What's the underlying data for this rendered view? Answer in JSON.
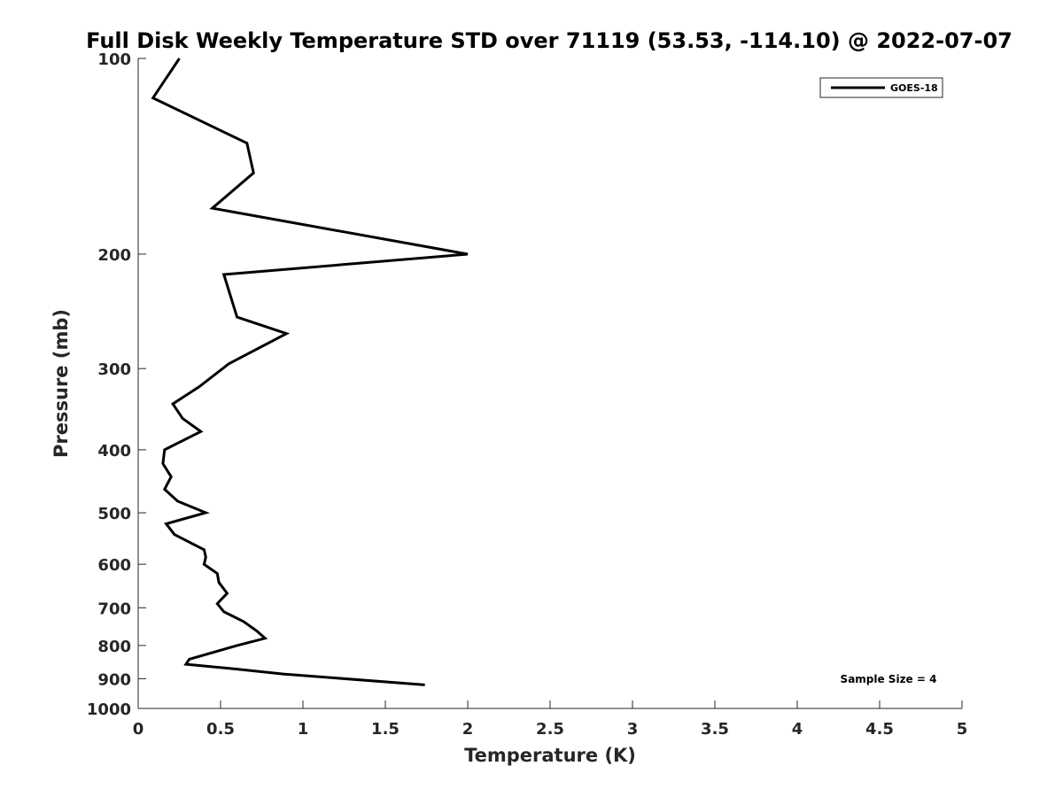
{
  "chart_data": {
    "type": "line",
    "title": "Full Disk Weekly Temperature STD over 71119 (53.53, -114.10) @ 2022-07-07",
    "xlabel": "Temperature (K)",
    "ylabel": "Pressure (mb)",
    "xlim": [
      0,
      5
    ],
    "ylim": [
      100,
      1000
    ],
    "y_scale": "log",
    "y_reversed": true,
    "x_ticks": [
      "0",
      "0.5",
      "1",
      "1.5",
      "2",
      "2.5",
      "3",
      "3.5",
      "4",
      "4.5",
      "5"
    ],
    "x_tick_values": [
      0,
      0.5,
      1,
      1.5,
      2,
      2.5,
      3,
      3.5,
      4,
      4.5,
      5
    ],
    "y_ticks": [
      "100",
      "200",
      "300",
      "400",
      "500",
      "600",
      "700",
      "800",
      "900",
      "1000"
    ],
    "y_tick_values": [
      100,
      200,
      300,
      400,
      500,
      600,
      700,
      800,
      900,
      1000
    ],
    "grid": false,
    "legend_position": "top-right",
    "series": [
      {
        "name": "GOES-18",
        "color": "#000000",
        "points": [
          [
            0.25,
            100
          ],
          [
            0.09,
            115
          ],
          [
            0.66,
            135
          ],
          [
            0.7,
            150
          ],
          [
            0.45,
            170
          ],
          [
            2.0,
            200
          ],
          [
            0.52,
            215
          ],
          [
            0.6,
            250
          ],
          [
            0.9,
            265
          ],
          [
            0.55,
            295
          ],
          [
            0.37,
            320
          ],
          [
            0.21,
            340
          ],
          [
            0.27,
            358
          ],
          [
            0.38,
            375
          ],
          [
            0.16,
            400
          ],
          [
            0.15,
            420
          ],
          [
            0.2,
            440
          ],
          [
            0.16,
            460
          ],
          [
            0.24,
            480
          ],
          [
            0.41,
            500
          ],
          [
            0.17,
            520
          ],
          [
            0.22,
            540
          ],
          [
            0.4,
            570
          ],
          [
            0.41,
            585
          ],
          [
            0.4,
            600
          ],
          [
            0.48,
            620
          ],
          [
            0.49,
            640
          ],
          [
            0.54,
            665
          ],
          [
            0.48,
            690
          ],
          [
            0.52,
            710
          ],
          [
            0.64,
            735
          ],
          [
            0.72,
            760
          ],
          [
            0.77,
            780
          ],
          [
            0.6,
            800
          ],
          [
            0.31,
            840
          ],
          [
            0.29,
            855
          ],
          [
            0.6,
            870
          ],
          [
            0.88,
            885
          ],
          [
            1.74,
            920
          ]
        ]
      }
    ],
    "annotation": "Sample Size = 4"
  }
}
